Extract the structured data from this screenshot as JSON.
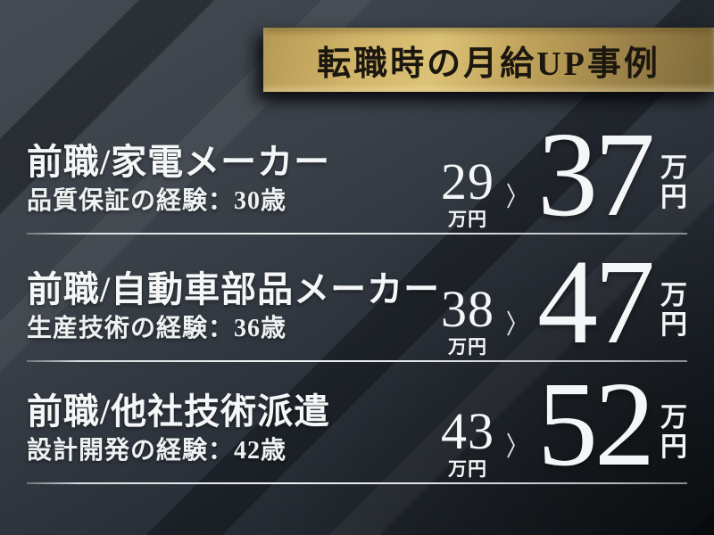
{
  "banner": {
    "title": "転職時の月給UP事例"
  },
  "arrow_glyph": "〉",
  "colors": {
    "background_base": "#3a4048",
    "background_dark": "#14191e",
    "banner_gold": "#cdb067",
    "banner_text": "#1b170e",
    "text_primary": "#f4f6f7",
    "divider": "#e6e9eb"
  },
  "rows": [
    {
      "title": "前職/家電メーカー",
      "subtitle": "品質保証の経験：30歳",
      "before_value": "29",
      "before_unit": "万円",
      "after_value": "37",
      "after_unit_top": "万",
      "after_unit_bottom": "円"
    },
    {
      "title": "前職/自動車部品メーカー",
      "subtitle": "生産技術の経験：36歳",
      "before_value": "38",
      "before_unit": "万円",
      "after_value": "47",
      "after_unit_top": "万",
      "after_unit_bottom": "円"
    },
    {
      "title": "前職/他社技術派遣",
      "subtitle": "設計開発の経験：42歳",
      "before_value": "43",
      "before_unit": "万円",
      "after_value": "52",
      "after_unit_top": "万",
      "after_unit_bottom": "円"
    }
  ]
}
